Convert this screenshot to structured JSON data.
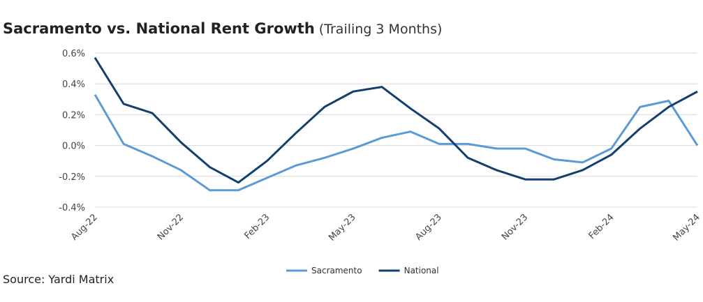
{
  "chart_data": {
    "type": "line",
    "title": "Sacramento vs. National Rent Growth",
    "subtitle": "(Trailing 3 Months)",
    "source": "Source: Yardi Matrix",
    "categories": [
      "Aug-22",
      null,
      null,
      "Nov-22",
      null,
      null,
      "Feb-23",
      null,
      null,
      "May-23",
      null,
      null,
      "Aug-23",
      null,
      null,
      "Nov-23",
      null,
      null,
      "Feb-24",
      null,
      null,
      "May-24"
    ],
    "series": [
      {
        "name": "Sacramento",
        "color": "#5b9bd5",
        "values": [
          0.33,
          0.01,
          -0.07,
          -0.16,
          -0.29,
          -0.29,
          -0.21,
          -0.13,
          -0.08,
          -0.02,
          0.05,
          0.09,
          0.01,
          0.01,
          -0.02,
          -0.02,
          -0.09,
          -0.11,
          -0.02,
          0.25,
          0.29,
          0.0
        ]
      },
      {
        "name": "National",
        "color": "#12406e",
        "values": [
          0.57,
          0.27,
          0.21,
          0.02,
          -0.14,
          -0.24,
          -0.1,
          0.08,
          0.25,
          0.35,
          0.38,
          0.24,
          0.11,
          -0.08,
          -0.16,
          -0.22,
          -0.22,
          -0.16,
          -0.06,
          0.11,
          0.25,
          0.35
        ]
      }
    ],
    "ylim": [
      -0.4,
      0.6
    ],
    "yticks": [
      {
        "value": -0.4,
        "label": "-0.4%"
      },
      {
        "value": -0.2,
        "label": "-0.2%"
      },
      {
        "value": 0,
        "label": "0.0%"
      },
      {
        "value": 0.2,
        "label": "0.2%"
      },
      {
        "value": 0.4,
        "label": "0.4%"
      },
      {
        "value": 0.6,
        "label": "0.6%"
      }
    ],
    "grid": true,
    "legend": "bottom"
  }
}
